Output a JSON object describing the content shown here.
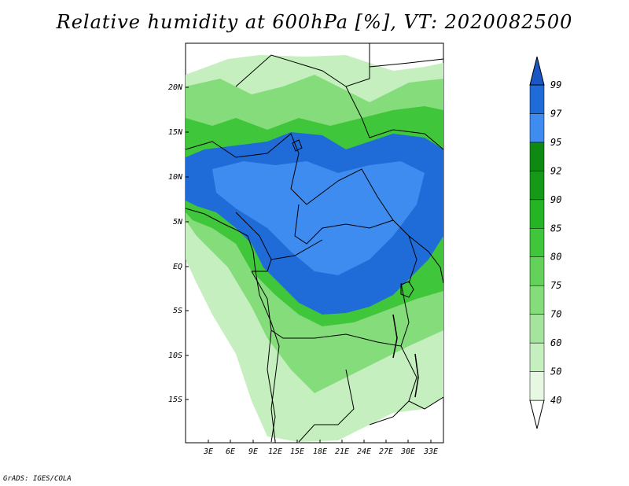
{
  "title": "Relative humidity at 600hPa [%], VT: 2020082500",
  "credit": "GrADS: IGES/COLA",
  "map": {
    "lat_labels": [
      "20N",
      "15N",
      "10N",
      "5N",
      "EQ",
      "5S",
      "10S",
      "15S"
    ],
    "lon_labels": [
      "3E",
      "6E",
      "9E",
      "12E",
      "15E",
      "18E",
      "21E",
      "24E",
      "27E",
      "30E",
      "33E"
    ]
  },
  "colorbar": {
    "levels": [
      "40",
      "50",
      "60",
      "70",
      "75",
      "80",
      "85",
      "90",
      "92",
      "95",
      "97",
      "99"
    ],
    "colors": [
      "#ffffff",
      "#e6f8e2",
      "#c6efbf",
      "#a5e49c",
      "#85dc7b",
      "#63d15a",
      "#40c63a",
      "#25b524",
      "#159a18",
      "#0e8a12",
      "#3f8cf0",
      "#1f6bd8",
      "#1a56c4"
    ]
  }
}
